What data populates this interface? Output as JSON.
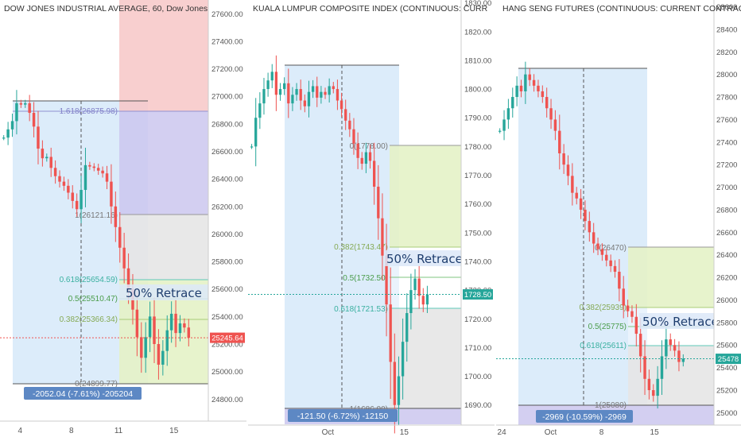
{
  "colors": {
    "up": "#26a69a",
    "down": "#ef5350",
    "axis_text": "#555555",
    "badge_blue": "#5d88c4",
    "price_green": "#26a69a",
    "price_red": "#ef5350",
    "fib_blue": "#bfdcf5",
    "fib_purple": "#cbc7ef",
    "fib_green": "#e4f2c6",
    "fib_grey": "#e6e6e6",
    "fib_red": "#f7c7c7"
  },
  "chart_data": [
    {
      "type": "candlestick",
      "title": "DOW JONES INDUSTRIAL AVERAGE, 60, Dow Jones",
      "y_ticks": [
        "27600.00",
        "27400.00",
        "27200.00",
        "27000.00",
        "26800.00",
        "26600.00",
        "26400.00",
        "26200.00",
        "26000.00",
        "25800.00",
        "25600.00",
        "25400.00",
        "25200.00",
        "25000.00",
        "24800.00"
      ],
      "y_tick_values": [
        27600,
        27400,
        27200,
        27000,
        26800,
        26600,
        26400,
        26200,
        26000,
        25800,
        25600,
        25400,
        25200,
        25000,
        24800
      ],
      "ylim": [
        24640,
        27700
      ],
      "x_ticks": [
        "4",
        "8",
        "11",
        "15"
      ],
      "x_tick_positions": [
        0.09,
        0.34,
        0.57,
        0.84
      ],
      "current_price": "25245.64",
      "current_value": 25245.64,
      "current_color": "down",
      "fib_levels": [
        {
          "label": "1.618(26875.98)",
          "value": 26875.98
        },
        {
          "label": "1(26121.16)",
          "value": 26121.16
        },
        {
          "label": "0.618(25654.59)",
          "value": 25654.59
        },
        {
          "label": "0.5(25510.47)",
          "value": 25510.47
        },
        {
          "label": "0.382(25366.34)",
          "value": 25366.34
        },
        {
          "label": "0(24899.77)",
          "value": 24899.77
        }
      ],
      "annotation": "50% Retrace",
      "measure_label": "-2052.04 (-7.61%) -205204",
      "series_points": [
        26700,
        26760,
        26820,
        26950,
        26940,
        26950,
        26880,
        26780,
        26620,
        26550,
        26560,
        26480,
        26420,
        26380,
        26350,
        26300,
        26240,
        26180,
        26320,
        26500,
        26490,
        26480,
        26460,
        26440,
        26380,
        26200,
        26050,
        25900,
        25750,
        25600,
        25450,
        25250,
        25100,
        25250,
        25400,
        25200,
        25050,
        25150,
        25300,
        25420,
        25280,
        25350,
        25320,
        25245.64
      ]
    },
    {
      "type": "candlestick",
      "title": "KUALA LUMPUR COMPOSITE INDEX (CONTINUOUS: CURR",
      "y_ticks": [
        "1830.00",
        "1820.00",
        "1810.00",
        "1800.00",
        "1790.00",
        "1780.00",
        "1770.00",
        "1760.00",
        "1750.00",
        "1740.00",
        "1730.00",
        "1720.00",
        "1710.00",
        "1700.00",
        "1690.00"
      ],
      "y_tick_values": [
        1830,
        1820,
        1810,
        1800,
        1790,
        1780,
        1770,
        1760,
        1750,
        1740,
        1730,
        1720,
        1710,
        1700,
        1690
      ],
      "ylim": [
        1683,
        1831
      ],
      "x_ticks": [
        "Oct",
        "15"
      ],
      "x_tick_positions": [
        0.4,
        0.79
      ],
      "current_price": "1728.50",
      "current_value": 1728.5,
      "current_color": "up",
      "fib_levels": [
        {
          "label": "0(1778.00)",
          "value": 1778.0
        },
        {
          "label": "0.382(1743.47)",
          "value": 1743.47
        },
        {
          "label": "0.5(1732.50)",
          "value": 1732.5
        },
        {
          "label": "0.618(1721.53)",
          "value": 1721.53
        },
        {
          "label": "1(1686.00)",
          "value": 1686.0
        }
      ],
      "annotation": "50% Retrace",
      "measure_label": "-121.50 (-6.72%) -12150",
      "series_points": [
        1780,
        1790,
        1795,
        1800,
        1803,
        1806,
        1798,
        1800,
        1802,
        1795,
        1798,
        1800,
        1796,
        1794,
        1799,
        1801,
        1797,
        1799,
        1798,
        1801,
        1800,
        1796,
        1793,
        1789,
        1786,
        1781,
        1776,
        1774,
        1778,
        1775,
        1766,
        1755,
        1742,
        1725,
        1705,
        1690,
        1700,
        1712,
        1722,
        1730,
        1734,
        1728,
        1725,
        1728.5
      ]
    },
    {
      "type": "candlestick",
      "title": "HANG SENG FUTURES (CONTINUOUS: CURRENT CONTRACT",
      "y_ticks": [
        "28600",
        "28400",
        "28200",
        "28000",
        "27800",
        "27600",
        "27400",
        "27200",
        "27000",
        "26800",
        "26600",
        "26400",
        "26200",
        "26000",
        "25800",
        "25600",
        "25400",
        "25200",
        "25000"
      ],
      "y_tick_values": [
        28600,
        28400,
        28200,
        28000,
        27800,
        27600,
        27400,
        27200,
        27000,
        26800,
        26600,
        26400,
        26200,
        26000,
        25800,
        25600,
        25400,
        25200,
        25000
      ],
      "ylim": [
        24890,
        28660
      ],
      "x_ticks": [
        "24",
        "Oct",
        "8",
        "15"
      ],
      "x_tick_positions": [
        0.02,
        0.26,
        0.51,
        0.77
      ],
      "current_price": "25478",
      "current_value": 25478,
      "current_color": "up",
      "fib_levels": [
        {
          "label": "0(26470)",
          "value": 26470
        },
        {
          "label": "0.382(25939)",
          "value": 25939
        },
        {
          "label": "0.5(25775)",
          "value": 25775
        },
        {
          "label": "0.618(25611)",
          "value": 25611
        },
        {
          "label": "1(25080)",
          "value": 25080
        }
      ],
      "annotation": "50% Retrace",
      "measure_label": "-2969 (-10.59%) -2969",
      "series_points": [
        27500,
        27600,
        27700,
        27800,
        27900,
        27850,
        28000,
        27950,
        27900,
        27850,
        27800,
        27700,
        27600,
        27500,
        27300,
        27200,
        27100,
        26950,
        26900,
        26800,
        26700,
        26600,
        26500,
        26450,
        26400,
        26350,
        26300,
        26250,
        26100,
        25950,
        25900,
        25850,
        25700,
        25500,
        25300,
        25200,
        25150,
        25300,
        25500,
        25650,
        25600,
        25550,
        25450,
        25478
      ]
    }
  ]
}
